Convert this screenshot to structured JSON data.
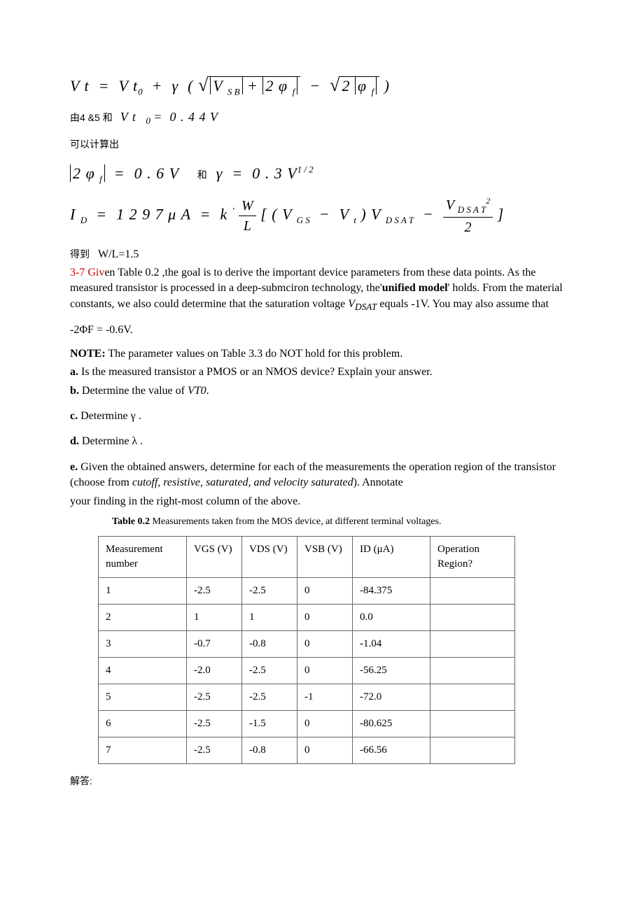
{
  "equations": {
    "vt_eq": "Vt = Vt₀ + γ ( √(|V_SB| + |2φ_f|) − √(2|φ_f|) )",
    "line2_cjk1": "由4 &5 和",
    "line2_math": "V t ₀ = 0 . 4 4 V",
    "line3_cjk": "可以计算出",
    "line4_lhs": "|2φ_f| = 0.6V",
    "line4_cjk": "和",
    "line4_rhs": "γ = 0.3V^{1/2}",
    "id_eq": "I_D = 1297 μA = k' (W/L) [ (V_GS − V_t) V_DSAT − V_DSAT² / 2 ]",
    "line6_cjk": "得到",
    "line6_text": "W/L=1.5"
  },
  "problem": {
    "label_red": "3-7 Giv",
    "intro_rest": "en Table 0.2 ,the goal is to derive the important device parameters from these data points. As the measured transistor is processed in a deep-submciron technology, the'",
    "intro_bold": "unified model",
    "intro_after": "' holds. From the material constants, we also could determine that the saturation voltage ",
    "intro_italic": "V_DSAT",
    "intro_end": " equals -1V. You may also assume that",
    "phi_line": "-2ΦF = -0.6V.",
    "note_label": "NOTE:",
    "note_text": " The parameter values on Table 3.3 do NOT hold for this problem.",
    "a_label": "a.",
    "a_text": " Is the measured transistor a PMOS or an NMOS device? Explain your answer.",
    "b_label": "b.",
    "b_text": " Determine the value of ",
    "b_italic": "VT0",
    "b_end": ".",
    "c_label": "c.",
    "c_text": " Determine  γ .",
    "d_label": "d.",
    "d_text": " Determine  λ .",
    "e_label": "e.",
    "e_text": " Given the obtained answers, determine for each of the measurements the operation region of the transistor (choose from ",
    "e_italic": "cutoff, resistive, saturated, and velocity saturated",
    "e_after": "). Annotate",
    "e_line2": "your finding in the right-most column of the above."
  },
  "table": {
    "caption_bold": "Table 0.2",
    "caption_rest": "  Measurements taken from the MOS device, at different terminal voltages.",
    "headers": [
      "Measurement number",
      "VGS (V)",
      "VDS (V)",
      "VSB (V)",
      "ID (μA)",
      "Operation Region?"
    ],
    "rows": [
      [
        "1",
        "-2.5",
        "-2.5",
        "0",
        "-84.375",
        ""
      ],
      [
        "2",
        "1",
        "1",
        "0",
        "0.0",
        ""
      ],
      [
        "3",
        "-0.7",
        "-0.8",
        "0",
        "-1.04",
        ""
      ],
      [
        "4",
        "-2.0",
        "-2.5",
        "0",
        "-56.25",
        ""
      ],
      [
        "5",
        "-2.5",
        "-2.5",
        "-1",
        "-72.0",
        ""
      ],
      [
        "6",
        "-2.5",
        "-1.5",
        "0",
        "-80.625",
        ""
      ],
      [
        "7",
        "-2.5",
        "-0.8",
        "0",
        "-66.56",
        ""
      ]
    ]
  },
  "answer_cjk": "解答:"
}
